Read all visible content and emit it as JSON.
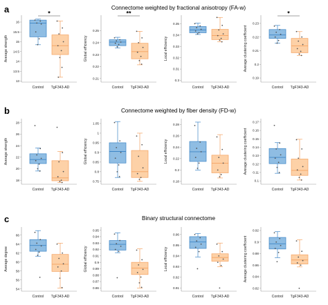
{
  "figure": {
    "rows": [
      {
        "letter": "a",
        "title": "Connectome weighted by fractional anisotropy (FA-w)"
      },
      {
        "letter": "b",
        "title": "Connectome weighted by fiber density (FD-w)"
      },
      {
        "letter": "c",
        "title": "Binary structural connectome"
      }
    ]
  },
  "colors": {
    "control_fill": "#8fbde3",
    "control_stroke": "#3d85c6",
    "tg_fill": "#fdd1a7",
    "tg_stroke": "#f4a261",
    "point": "#555555",
    "axis": "#999999",
    "sig_line": "#444444"
  },
  "chart_data": [
    {
      "type": "box",
      "row": 0,
      "col": 0,
      "ylabel": "Average strength",
      "categories": [
        "Control",
        "TgF343-AD"
      ],
      "yticks": [
        13,
        13.5,
        14,
        14.5,
        15,
        15.5,
        16
      ],
      "ytick_labels": [
        "13",
        "13.5",
        "14",
        "14.5",
        "15",
        "15.5",
        "16"
      ],
      "ylim": [
        12.95,
        16.35
      ],
      "boxes": [
        {
          "min": 14.85,
          "q1": 15.25,
          "median": 15.95,
          "q3": 16.1,
          "max": 16.15,
          "points": [
            16.1,
            16.05,
            15.95,
            15.9,
            15.5,
            15.15,
            14.85
          ]
        },
        {
          "min": 13.2,
          "q1": 14.35,
          "median": 14.8,
          "q3": 15.35,
          "max": 16.05,
          "points": [
            16.05,
            15.7,
            15.4,
            15.0,
            14.8,
            14.55,
            14.2,
            13.7,
            13.2
          ]
        }
      ],
      "significance": "*"
    },
    {
      "type": "box",
      "row": 0,
      "col": 1,
      "ylabel": "Global efficiency",
      "categories": [
        "Control",
        "TgF343-AD"
      ],
      "yticks": [
        0.21,
        0.22,
        0.23,
        0.24,
        0.25
      ],
      "ytick_labels": [
        "0.21",
        "0.22",
        "0.23",
        "0.24",
        "0.25"
      ],
      "ylim": [
        0.207,
        0.263
      ],
      "boxes": [
        {
          "min": 0.2355,
          "q1": 0.2375,
          "median": 0.2405,
          "q3": 0.2425,
          "max": 0.2445,
          "points": [
            0.244,
            0.2425,
            0.2415,
            0.2405,
            0.2395,
            0.2385,
            0.2365
          ]
        },
        {
          "min": 0.2215,
          "q1": 0.2265,
          "median": 0.2325,
          "q3": 0.2395,
          "max": 0.2495,
          "points": [
            0.2495,
            0.244,
            0.24,
            0.236,
            0.232,
            0.2285,
            0.225,
            0.222
          ]
        }
      ],
      "significance": "**"
    },
    {
      "type": "box",
      "row": 0,
      "col": 2,
      "ylabel": "Local efficiency",
      "categories": [
        "Control",
        "TgF343-AD"
      ],
      "yticks": [
        0.3,
        0.31,
        0.32,
        0.33,
        0.34,
        0.35
      ],
      "ytick_labels": [
        "0.3",
        "0.31",
        "0.32",
        "0.33",
        "0.34",
        "0.35"
      ],
      "ylim": [
        0.2985,
        0.3575
      ],
      "boxes": [
        {
          "min": 0.3405,
          "q1": 0.342,
          "median": 0.3445,
          "q3": 0.3475,
          "max": 0.3505,
          "points": [
            0.35,
            0.348,
            0.3465,
            0.345,
            0.3435,
            0.342,
            0.341
          ]
        },
        {
          "min": 0.334,
          "q1": 0.336,
          "median": 0.3395,
          "q3": 0.345,
          "max": 0.3555,
          "points": [
            0.3555,
            0.3485,
            0.3445,
            0.341,
            0.3395,
            0.337,
            0.3355,
            0.334
          ]
        }
      ],
      "significance": ""
    },
    {
      "type": "box",
      "row": 0,
      "col": 3,
      "ylabel": "Average clustering coefficient",
      "categories": [
        "Control",
        "TgF343-AD"
      ],
      "yticks": [
        0.19,
        0.2,
        0.21,
        0.22,
        0.23
      ],
      "ytick_labels": [
        "0.19",
        "0.2",
        "0.21",
        "0.22",
        "0.23"
      ],
      "ylim": [
        0.187,
        0.236
      ],
      "boxes": [
        {
          "min": 0.2155,
          "q1": 0.219,
          "median": 0.2215,
          "q3": 0.2255,
          "max": 0.2285,
          "points": [
            0.228,
            0.2255,
            0.2235,
            0.222,
            0.22,
            0.2175,
            0.2155
          ]
        },
        {
          "min": 0.2065,
          "q1": 0.2085,
          "median": 0.2135,
          "q3": 0.219,
          "max": 0.224,
          "points": [
            0.224,
            0.22,
            0.217,
            0.2145,
            0.2115,
            0.2095,
            0.2075,
            0.2065
          ]
        }
      ],
      "significance": "*"
    },
    {
      "type": "box",
      "row": 1,
      "col": 0,
      "ylabel": "Average strength",
      "categories": [
        "Control",
        "TgF343-AD"
      ],
      "yticks": [
        18,
        20,
        22,
        24,
        26,
        28
      ],
      "ytick_labels": [
        "18",
        "20",
        "22",
        "24",
        "26",
        "28"
      ],
      "ylim": [
        17.3,
        28.7
      ],
      "boxes": [
        {
          "min": 19.6,
          "q1": 20.9,
          "median": 21.6,
          "q3": 22.6,
          "max": 23.6,
          "points": [
            27.5,
            23.5,
            22.4,
            21.8,
            21.4,
            20.8,
            20.0,
            19.6
          ]
        },
        {
          "min": 17.6,
          "q1": 17.9,
          "median": 18.4,
          "q3": 21.4,
          "max": 23.0,
          "points": [
            27.2,
            22.8,
            21.2,
            19.5,
            18.6,
            18.0,
            17.8,
            17.6
          ]
        }
      ],
      "significance": ""
    },
    {
      "type": "box",
      "row": 1,
      "col": 1,
      "ylabel": "Global efficiency",
      "categories": [
        "Control",
        "TgF343-AD"
      ],
      "yticks": [
        0.75,
        0.8,
        0.85,
        0.9,
        0.95,
        1.0,
        1.05
      ],
      "ytick_labels": [
        "0.75",
        "0.8",
        "0.85",
        "0.9",
        "0.95",
        "1",
        "1.05"
      ],
      "ylim": [
        0.735,
        1.075
      ],
      "boxes": [
        {
          "min": 0.77,
          "q1": 0.845,
          "median": 0.905,
          "q3": 0.95,
          "max": 1.06,
          "points": [
            1.055,
            0.96,
            0.925,
            0.9,
            0.87,
            0.835,
            0.8,
            0.775
          ]
        },
        {
          "min": 0.75,
          "q1": 0.77,
          "median": 0.8,
          "q3": 0.91,
          "max": 1.0,
          "points": [
            0.985,
            0.94,
            0.88,
            0.82,
            0.79,
            0.77,
            0.76
          ]
        }
      ],
      "significance": ""
    },
    {
      "type": "box",
      "row": 1,
      "col": 2,
      "ylabel": "Local efficiency",
      "categories": [
        "Control",
        "TgF343-AD"
      ],
      "yticks": [
        0.18,
        0.2,
        0.22,
        0.24,
        0.26,
        0.28
      ],
      "ytick_labels": [
        "0.18",
        "0.2",
        "0.22",
        "0.24",
        "0.26",
        "0.28"
      ],
      "ylim": [
        0.175,
        0.29
      ],
      "boxes": [
        {
          "min": 0.2,
          "q1": 0.215,
          "median": 0.232,
          "q3": 0.25,
          "max": 0.284,
          "points": [
            0.278,
            0.249,
            0.238,
            0.232,
            0.222,
            0.212,
            0.203
          ]
        },
        {
          "min": 0.186,
          "q1": 0.195,
          "median": 0.212,
          "q3": 0.226,
          "max": 0.262,
          "points": [
            0.258,
            0.236,
            0.222,
            0.212,
            0.2,
            0.192,
            0.188
          ]
        }
      ],
      "significance": ""
    },
    {
      "type": "box",
      "row": 1,
      "col": 3,
      "ylabel": "Average clustering coefficient",
      "categories": [
        "Control",
        "TgF343-AD"
      ],
      "yticks": [
        0.1,
        0.11,
        0.12,
        0.13,
        0.14,
        0.15,
        0.16,
        0.17
      ],
      "ytick_labels": [
        "0.1",
        "0.11",
        "0.12",
        "0.13",
        "0.14",
        "0.15",
        "0.16",
        "0.17"
      ],
      "ylim": [
        0.096,
        0.174
      ],
      "boxes": [
        {
          "min": 0.109,
          "q1": 0.1205,
          "median": 0.128,
          "q3": 0.1385,
          "max": 0.1455,
          "points": [
            0.166,
            0.145,
            0.138,
            0.131,
            0.127,
            0.122,
            0.116,
            0.11
          ]
        },
        {
          "min": 0.101,
          "q1": 0.1065,
          "median": 0.1125,
          "q3": 0.126,
          "max": 0.1495,
          "points": [
            0.149,
            0.138,
            0.127,
            0.117,
            0.113,
            0.108,
            0.104,
            0.101
          ]
        }
      ],
      "significance": ""
    },
    {
      "type": "box",
      "row": 2,
      "col": 0,
      "ylabel": "Average degree",
      "categories": [
        "Control",
        "TgF343-AD"
      ],
      "yticks": [
        54,
        56,
        58,
        60,
        62,
        64,
        66
      ],
      "ytick_labels": [
        "54",
        "56",
        "58",
        "60",
        "62",
        "64",
        "66"
      ],
      "ylim": [
        53.5,
        67.8
      ],
      "boxes": [
        {
          "min": 61.3,
          "q1": 62.4,
          "median": 63.7,
          "q3": 65.0,
          "max": 67.0,
          "points": [
            66.6,
            65.0,
            64.2,
            63.6,
            62.8,
            62.2,
            61.5,
            56.6
          ]
        },
        {
          "min": 54.2,
          "q1": 57.9,
          "median": 59.5,
          "q3": 61.7,
          "max": 64.2,
          "points": [
            64.0,
            62.0,
            60.8,
            59.6,
            58.9,
            58.0,
            56.4,
            54.3
          ]
        }
      ],
      "significance": ""
    },
    {
      "type": "box",
      "row": 2,
      "col": 1,
      "ylabel": "Global efficiency",
      "categories": [
        "Control",
        "TgF343-AD"
      ],
      "yticks": [
        0.86,
        0.87,
        0.88,
        0.89,
        0.9,
        0.91,
        0.92,
        0.93,
        0.94,
        0.95
      ],
      "ytick_labels": [
        "0.86",
        "0.87",
        "0.88",
        "0.89",
        "0.9",
        "0.91",
        "0.92",
        "0.93",
        "0.94",
        "0.95"
      ],
      "ylim": [
        0.855,
        0.955
      ],
      "boxes": [
        {
          "min": 0.915,
          "q1": 0.919,
          "median": 0.928,
          "q3": 0.934,
          "max": 0.946,
          "points": [
            0.944,
            0.934,
            0.929,
            0.925,
            0.92,
            0.917,
            0.876
          ]
        },
        {
          "min": 0.86,
          "q1": 0.881,
          "median": 0.891,
          "q3": 0.9,
          "max": 0.921,
          "points": [
            0.919,
            0.904,
            0.896,
            0.889,
            0.884,
            0.877,
            0.868,
            0.861
          ]
        }
      ],
      "significance": ""
    },
    {
      "type": "box",
      "row": 2,
      "col": 2,
      "ylabel": "Local efficiency",
      "categories": [
        "Control",
        "TgF343-AD"
      ],
      "yticks": [
        0.91,
        0.92,
        0.93,
        0.94,
        0.95,
        0.96
      ],
      "ytick_labels": [
        "0.91",
        "0.92",
        "0.93",
        "0.94",
        "0.95",
        "0.96"
      ],
      "ylim": [
        0.907,
        0.967
      ],
      "boxes": [
        {
          "min": 0.939,
          "q1": 0.947,
          "median": 0.953,
          "q3": 0.958,
          "max": 0.961,
          "points": [
            0.96,
            0.957,
            0.954,
            0.951,
            0.948,
            0.944,
            0.928
          ]
        },
        {
          "min": 0.93,
          "q1": 0.935,
          "median": 0.9385,
          "q3": 0.942,
          "max": 0.952,
          "points": [
            0.951,
            0.944,
            0.94,
            0.937,
            0.934,
            0.931,
            0.91
          ]
        }
      ],
      "significance": ""
    },
    {
      "type": "box",
      "row": 2,
      "col": 3,
      "ylabel": "Average clustering coefficient",
      "categories": [
        "Control",
        "TgF343-AD"
      ],
      "yticks": [
        0.82,
        0.84,
        0.86,
        0.88,
        0.9,
        0.92
      ],
      "ytick_labels": [
        "0.82",
        "0.84",
        "0.86",
        "0.88",
        "0.9",
        "0.92"
      ],
      "ylim": [
        0.815,
        0.926
      ],
      "boxes": [
        {
          "min": 0.873,
          "q1": 0.888,
          "median": 0.897,
          "q3": 0.908,
          "max": 0.918,
          "points": [
            0.916,
            0.906,
            0.9,
            0.894,
            0.889,
            0.882,
            0.866
          ]
        },
        {
          "min": 0.857,
          "q1": 0.862,
          "median": 0.869,
          "q3": 0.878,
          "max": 0.904,
          "points": [
            0.902,
            0.884,
            0.874,
            0.868,
            0.864,
            0.86,
            0.82
          ]
        }
      ],
      "significance": ""
    }
  ]
}
